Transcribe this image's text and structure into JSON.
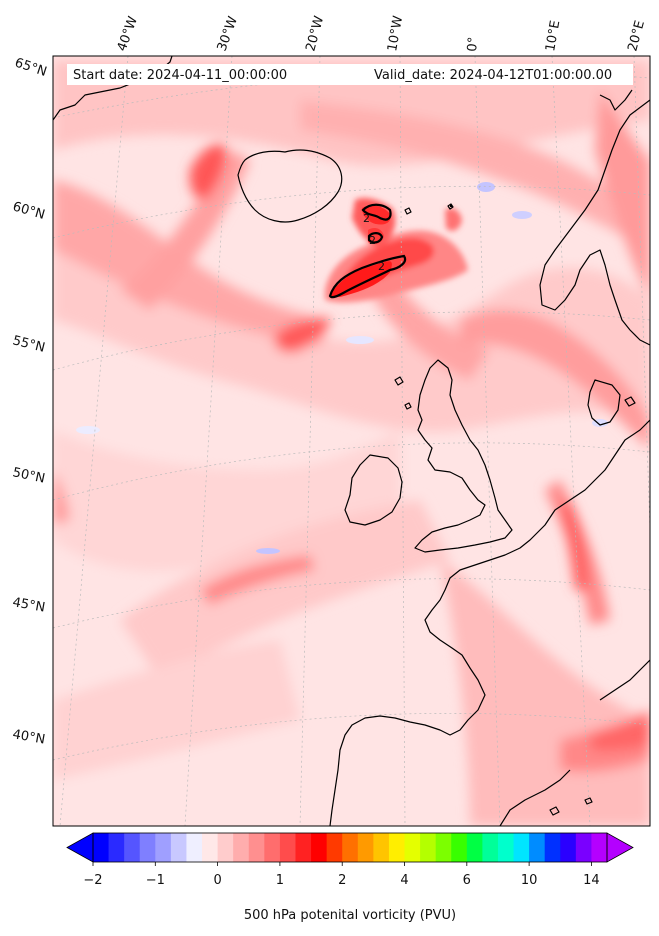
{
  "header": {
    "start_date": "Start date: 2024-04-11_00:00:00",
    "valid_date": "Valid_date: 2024-04-12T01:00:00.00"
  },
  "longitude_labels": [
    "40°W",
    "30°W",
    "20°W",
    "10°W",
    "0°",
    "10°E",
    "20°E"
  ],
  "latitude_labels": [
    "65°N",
    "60°N",
    "55°N",
    "50°N",
    "45°N",
    "40°N"
  ],
  "contour_labels": [
    "2",
    "2",
    "2"
  ],
  "colorbar": {
    "label": "500 hPa potenital vorticity (PVU)",
    "tick_labels": [
      "−2",
      "−1",
      "0",
      "1",
      "2",
      "4",
      "6",
      "10",
      "14"
    ],
    "colors": [
      "#0000ff",
      "#2a2aff",
      "#5555ff",
      "#7f7fff",
      "#9f9fff",
      "#c8c8ff",
      "#efefff",
      "#ffe8e8",
      "#ffcccc",
      "#ffadad",
      "#ff8f8f",
      "#ff6d6d",
      "#ff4c4c",
      "#ff2222",
      "#ff0000",
      "#ff3a00",
      "#ff7000",
      "#ff9a00",
      "#ffc400",
      "#ffee00",
      "#e4ff00",
      "#b4ff00",
      "#7cff00",
      "#38ff00",
      "#00ff44",
      "#00ff99",
      "#00ffcc",
      "#00e5ff",
      "#008cff",
      "#0030ff",
      "#2a00ff",
      "#7a00ff",
      "#b400ff"
    ]
  },
  "colors": {
    "field_base": "#ffe4e4",
    "field_light": "#ffc9c9",
    "field_mid": "#ffa3a3",
    "field_strong": "#ff6a6a",
    "field_max": "#ff2020",
    "field_negative": "#d8d8ff",
    "coastline": "#000000",
    "gridline": "#bbbbbb"
  }
}
